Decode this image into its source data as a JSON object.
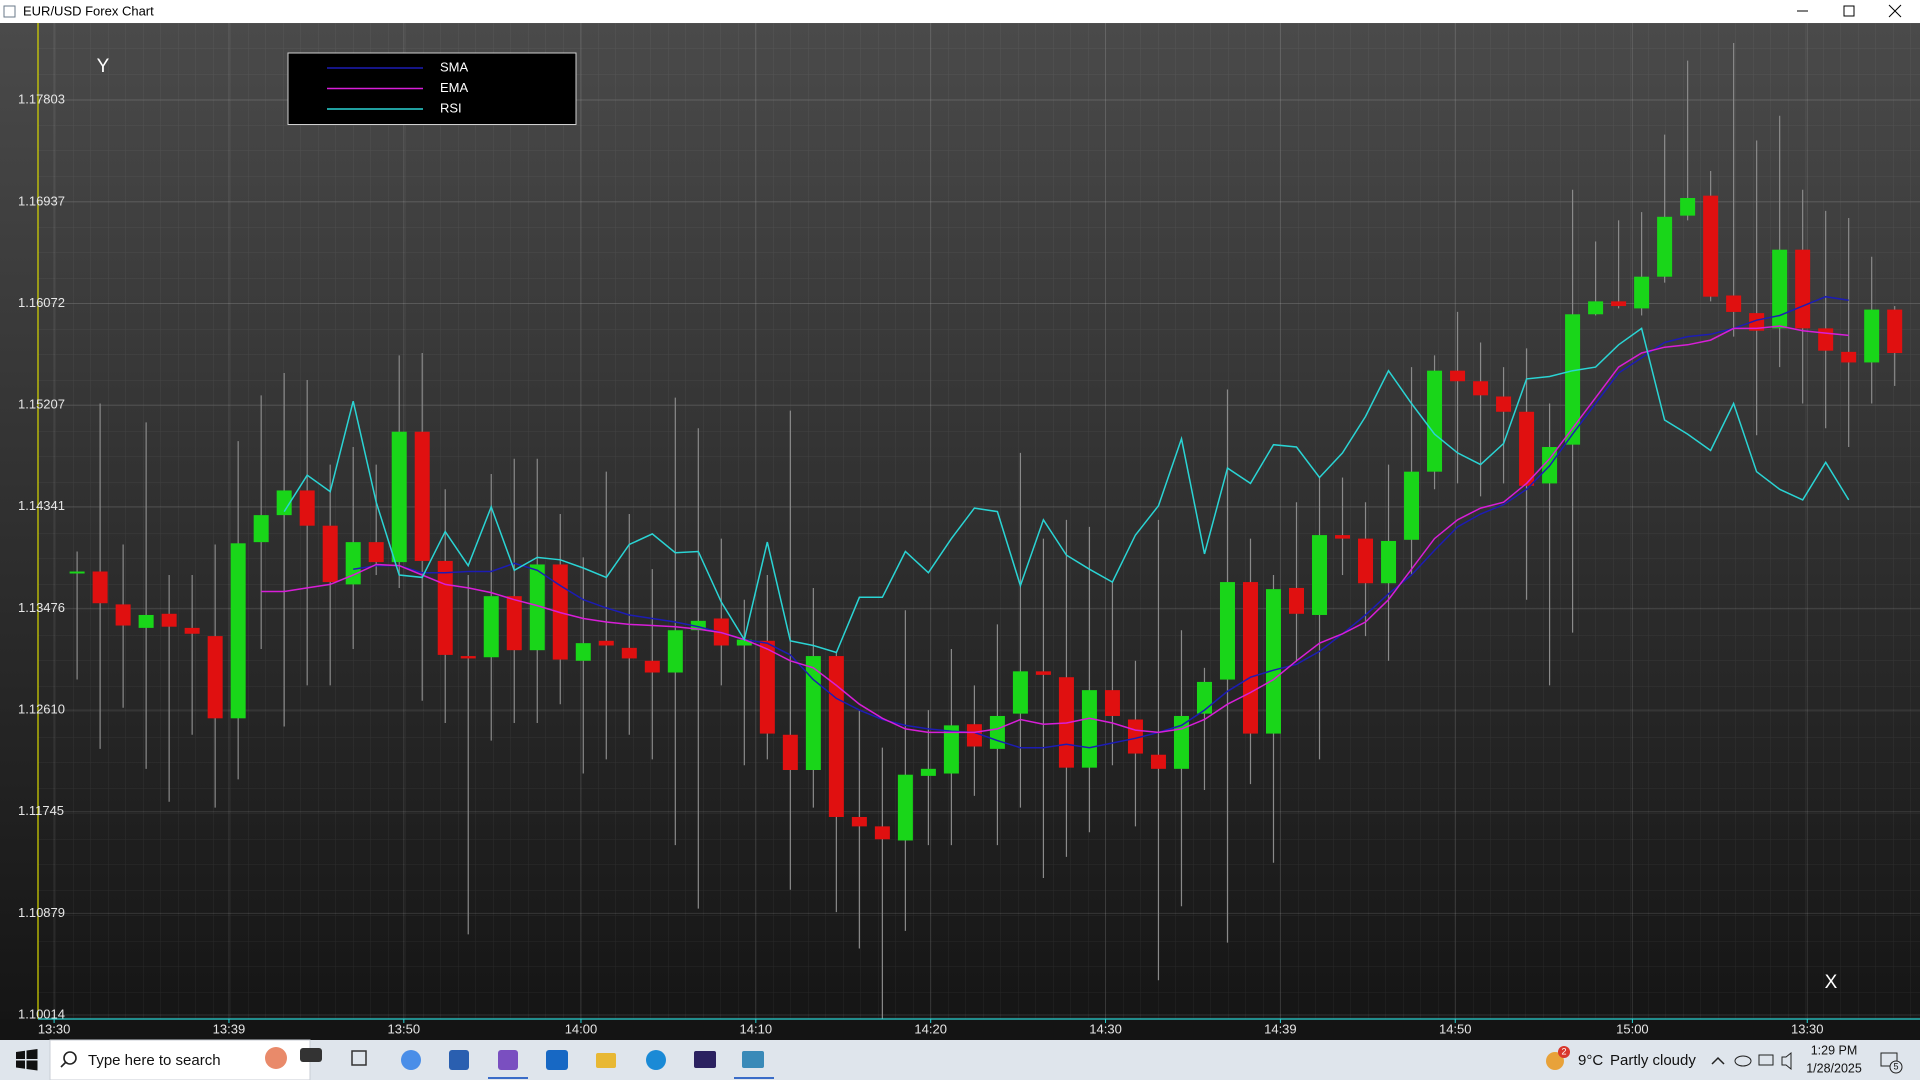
{
  "window": {
    "title": "EUR/USD Forex Chart"
  },
  "chart_data": {
    "type": "candlestick",
    "y_axis_label": "Y",
    "x_axis_label": "X",
    "x": [
      0,
      1,
      2,
      3,
      4,
      5,
      6,
      7,
      8,
      9,
      10,
      11,
      12,
      13,
      14,
      15,
      16,
      17,
      18,
      19,
      20,
      21,
      22,
      23,
      24,
      25,
      26,
      27,
      28,
      29,
      30,
      31,
      32,
      33,
      34,
      35,
      36,
      37,
      38,
      39,
      40,
      41,
      42,
      43,
      44,
      45,
      46,
      47,
      48,
      49,
      50,
      51,
      52,
      53,
      54,
      55,
      56,
      57,
      58,
      59,
      60,
      61,
      62,
      63,
      64,
      65,
      66,
      67,
      68,
      69,
      70,
      71,
      72,
      73,
      74,
      75,
      76,
      77,
      78,
      79
    ],
    "open": [
      1.1378,
      1.1379,
      1.1351,
      1.1331,
      1.1343,
      1.1331,
      1.1324,
      1.1254,
      1.1404,
      1.1427,
      1.1448,
      1.1418,
      1.1368,
      1.1404,
      1.1387,
      1.1498,
      1.1388,
      1.1307,
      1.1306,
      1.1358,
      1.1312,
      1.1385,
      1.1303,
      1.132,
      1.1314,
      1.1303,
      1.1293,
      1.1329,
      1.1339,
      1.1316,
      1.132,
      1.124,
      1.121,
      1.1307,
      1.117,
      1.1162,
      1.115,
      1.1205,
      1.1207,
      1.1249,
      1.1228,
      1.1258,
      1.1294,
      1.1289,
      1.1212,
      1.1278,
      1.1253,
      1.1223,
      1.1211,
      1.1258,
      1.1287,
      1.137,
      1.1241,
      1.1365,
      1.1342,
      1.141,
      1.1407,
      1.1369,
      1.1406,
      1.1464,
      1.155,
      1.1541,
      1.1528,
      1.1515,
      1.1454,
      1.1487,
      1.1598,
      1.1609,
      1.1603,
      1.163,
      1.1682,
      1.1699,
      1.1614,
      1.1599,
      1.1586,
      1.1653,
      1.1586,
      1.1566,
      1.1557,
      1.1602
    ],
    "high": [
      1.1396,
      1.1522,
      1.1402,
      1.1506,
      1.1376,
      1.1376,
      1.1402,
      1.149,
      1.1529,
      1.1548,
      1.1542,
      1.147,
      1.1485,
      1.147,
      1.1563,
      1.1565,
      1.1449,
      1.1376,
      1.1462,
      1.1475,
      1.1475,
      1.1428,
      1.1391,
      1.1464,
      1.1428,
      1.1381,
      1.1527,
      1.1501,
      1.1407,
      1.1355,
      1.1376,
      1.1516,
      1.1365,
      1.131,
      1.1261,
      1.1229,
      1.1346,
      1.1261,
      1.1313,
      1.1282,
      1.1334,
      1.148,
      1.1407,
      1.1423,
      1.1417,
      1.137,
      1.1303,
      1.1423,
      1.1329,
      1.1297,
      1.1534,
      1.1407,
      1.1376,
      1.1438,
      1.1459,
      1.1459,
      1.1438,
      1.147,
      1.1553,
      1.1563,
      1.16,
      1.1574,
      1.1553,
      1.1569,
      1.1522,
      1.1704,
      1.166,
      1.1678,
      1.1685,
      1.1751,
      1.1814,
      1.172,
      1.1829,
      1.1746,
      1.1767,
      1.1704,
      1.1686,
      1.168,
      1.1647,
      1.1605
    ],
    "low": [
      1.1287,
      1.1228,
      1.1263,
      1.1211,
      1.1183,
      1.124,
      1.1178,
      1.1202,
      1.1313,
      1.1247,
      1.1282,
      1.1282,
      1.1313,
      1.1376,
      1.1365,
      1.1269,
      1.125,
      1.107,
      1.1235,
      1.125,
      1.125,
      1.1266,
      1.1207,
      1.1219,
      1.124,
      1.1219,
      1.1146,
      1.1092,
      1.1282,
      1.1214,
      1.1219,
      1.1108,
      1.1178,
      1.1089,
      1.1058,
      1.0998,
      1.1073,
      1.1146,
      1.1146,
      1.1188,
      1.1146,
      1.1178,
      1.1118,
      1.1136,
      1.1157,
      1.1214,
      1.1162,
      1.1031,
      1.1094,
      1.1193,
      1.1063,
      1.1198,
      1.1131,
      1.1303,
      1.1219,
      1.1376,
      1.1324,
      1.1303,
      1.1376,
      1.1449,
      1.1454,
      1.1443,
      1.1454,
      1.1355,
      1.1282,
      1.1327,
      1.1597,
      1.1603,
      1.1597,
      1.1625,
      1.1678,
      1.1609,
      1.1579,
      1.1495,
      1.1553,
      1.1522,
      1.1501,
      1.1485,
      1.1522,
      1.1537
    ],
    "close": [
      1.1379,
      1.1352,
      1.1333,
      1.1342,
      1.1332,
      1.1326,
      1.1254,
      1.1403,
      1.1427,
      1.1448,
      1.1418,
      1.137,
      1.1404,
      1.1387,
      1.1498,
      1.1388,
      1.1308,
      1.1305,
      1.1358,
      1.1312,
      1.1385,
      1.1304,
      1.1318,
      1.1316,
      1.1305,
      1.1293,
      1.1329,
      1.1337,
      1.1316,
      1.1321,
      1.1241,
      1.121,
      1.1307,
      1.117,
      1.1162,
      1.1151,
      1.1206,
      1.1211,
      1.1248,
      1.123,
      1.1256,
      1.1294,
      1.1291,
      1.1212,
      1.1278,
      1.1256,
      1.1224,
      1.1211,
      1.1256,
      1.1285,
      1.137,
      1.1241,
      1.1364,
      1.1343,
      1.141,
      1.1407,
      1.1369,
      1.1405,
      1.1464,
      1.155,
      1.1541,
      1.1529,
      1.1515,
      1.1452,
      1.1485,
      1.1598,
      1.1609,
      1.1605,
      1.163,
      1.1681,
      1.1697,
      1.1613,
      1.16,
      1.1584,
      1.1653,
      1.1586,
      1.1567,
      1.1557,
      1.1602,
      1.1565
    ],
    "up_color": "#19d619",
    "down_color": "#e01010",
    "wick_color": "#8a8a8a",
    "series": [
      {
        "name": "SMA",
        "color": "#1c1cb4",
        "values": [
          null,
          null,
          null,
          null,
          null,
          null,
          null,
          null,
          null,
          null,
          null,
          null,
          1.1381,
          1.1384,
          1.1384,
          1.1378,
          1.1378,
          1.1379,
          1.1379,
          1.1386,
          1.138,
          1.1367,
          1.1355,
          1.1348,
          1.1342,
          1.1339,
          1.1336,
          1.1332,
          1.1327,
          1.1321,
          1.1318,
          1.1308,
          1.1287,
          1.1271,
          1.1261,
          1.1253,
          1.1248,
          1.1245,
          1.1243,
          1.1242,
          1.1235,
          1.1229,
          1.1229,
          1.1232,
          1.1229,
          1.1233,
          1.1237,
          1.1242,
          1.1248,
          1.1261,
          1.1277,
          1.1289,
          1.1295,
          1.13,
          1.1311,
          1.1326,
          1.1342,
          1.136,
          1.1376,
          1.1397,
          1.1417,
          1.1428,
          1.1436,
          1.1449,
          1.1469,
          1.1496,
          1.1522,
          1.1548,
          1.1561,
          1.1574,
          1.1579,
          1.1581,
          1.1586,
          1.1593,
          1.1597,
          1.1605,
          1.1613,
          1.161,
          null,
          null
        ]
      },
      {
        "name": "EMA",
        "color": "#d81ed8",
        "values": [
          null,
          null,
          null,
          null,
          null,
          null,
          null,
          null,
          1.1362,
          1.1362,
          1.1365,
          1.1368,
          1.1376,
          1.1385,
          1.1384,
          1.1376,
          1.1368,
          1.1365,
          1.1361,
          1.1355,
          1.135,
          1.1344,
          1.1339,
          1.1336,
          1.1334,
          1.1333,
          1.1332,
          1.133,
          1.1327,
          1.1321,
          1.1313,
          1.1303,
          1.1297,
          1.1282,
          1.1266,
          1.1254,
          1.1245,
          1.1242,
          1.1242,
          1.1242,
          1.1245,
          1.1253,
          1.1249,
          1.125,
          1.1254,
          1.125,
          1.1244,
          1.1242,
          1.1245,
          1.1253,
          1.1266,
          1.1276,
          1.1287,
          1.1303,
          1.1318,
          1.1326,
          1.1336,
          1.1355,
          1.1381,
          1.1407,
          1.1423,
          1.1433,
          1.1438,
          1.1454,
          1.1475,
          1.1501,
          1.1527,
          1.1553,
          1.1565,
          1.157,
          1.1572,
          1.1576,
          1.1586,
          1.1586,
          1.1588,
          1.1584,
          1.1582,
          1.158,
          null,
          null
        ]
      },
      {
        "name": "RSI",
        "color": "#2ad4d4",
        "values": [
          null,
          null,
          null,
          null,
          null,
          null,
          null,
          null,
          null,
          1.143,
          1.1461,
          1.1447,
          1.1524,
          1.1438,
          1.1376,
          1.1374,
          1.1413,
          1.1384,
          1.1434,
          1.138,
          1.1391,
          1.1389,
          1.1382,
          1.1374,
          1.1402,
          1.1411,
          1.1395,
          1.1396,
          1.1353,
          1.1321,
          1.1404,
          1.132,
          1.1316,
          1.131,
          1.1357,
          1.1357,
          1.1396,
          1.1378,
          1.1407,
          1.1433,
          1.143,
          1.1367,
          1.1423,
          1.1393,
          1.1381,
          1.137,
          1.141,
          1.1435,
          1.1492,
          1.1394,
          1.1467,
          1.1454,
          1.1487,
          1.1485,
          1.1459,
          1.148,
          1.1511,
          1.155,
          1.1522,
          1.1496,
          1.148,
          1.147,
          1.1488,
          1.1543,
          1.1545,
          1.155,
          1.1553,
          1.1572,
          1.1586,
          1.1508,
          1.1496,
          1.1482,
          1.1522,
          1.1464,
          1.1449,
          1.144,
          1.1472,
          1.144,
          null,
          null
        ]
      }
    ],
    "xlim": [
      -1.7,
      80.1
    ],
    "ylim": [
      1.0998,
      1.1846
    ],
    "xticks": [
      {
        "value": -1.0,
        "label": "13:30"
      },
      {
        "value": 6.6,
        "label": "13:39"
      },
      {
        "value": 14.2,
        "label": "13:50"
      },
      {
        "value": 21.9,
        "label": "14:00"
      },
      {
        "value": 29.5,
        "label": "14:10"
      },
      {
        "value": 37.1,
        "label": "14:20"
      },
      {
        "value": 44.7,
        "label": "14:30"
      },
      {
        "value": 52.3,
        "label": "14:39"
      },
      {
        "value": 59.9,
        "label": "14:50"
      },
      {
        "value": 67.6,
        "label": "15:00"
      },
      {
        "value": 75.2,
        "label": "13:30"
      }
    ],
    "yticks": [
      1.10014,
      1.10879,
      1.11745,
      {
        "value": 1.1261,
        "label": "1.12610"
      },
      1.13476,
      1.14341,
      1.15207,
      1.16072,
      1.16937,
      1.17803
    ],
    "grid": true,
    "legend": "top-left"
  },
  "taskbar": {
    "search": "Type here to search",
    "weather_alerts": "2",
    "temperature": "9°C",
    "weather": "Partly cloudy",
    "time": "1:29 PM",
    "date": "1/28/2025",
    "notifications": "5"
  }
}
